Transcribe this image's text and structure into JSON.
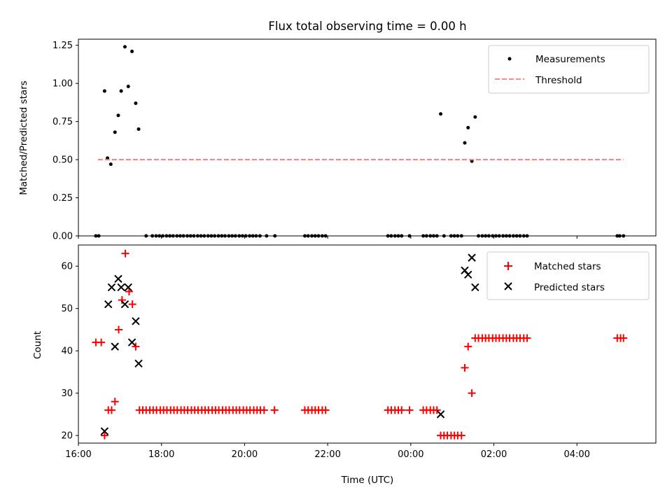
{
  "chart_data": [
    {
      "type": "scatter",
      "title": "Flux total observing time = 0.00 h",
      "xlabel": "",
      "ylabel": "Matched/Predicted stars",
      "xlim": [
        16.0,
        29.9
      ],
      "ylim": [
        0.0,
        1.29
      ],
      "x_tick_hours": [
        16,
        18,
        20,
        22,
        24,
        26,
        28
      ],
      "yticks": [
        "0.00",
        "0.25",
        "0.50",
        "0.75",
        "1.00",
        "1.25"
      ],
      "legend_position": "top-right",
      "series": [
        {
          "name": "Measurements",
          "marker": "dot",
          "color": "#000000",
          "x": [
            16.42,
            16.49,
            16.63,
            16.7,
            16.78,
            16.88,
            16.96,
            17.03,
            17.12,
            17.2,
            17.29,
            17.38,
            17.45,
            17.63,
            17.78,
            17.87,
            17.95,
            18.03,
            18.12,
            18.2,
            18.28,
            18.37,
            18.45,
            18.53,
            18.62,
            18.7,
            18.78,
            18.87,
            18.95,
            19.03,
            19.12,
            19.2,
            19.28,
            19.37,
            19.45,
            19.53,
            19.62,
            19.7,
            19.78,
            19.87,
            19.95,
            20.03,
            20.12,
            20.2,
            20.28,
            20.37,
            20.53,
            20.73,
            21.45,
            21.53,
            21.62,
            21.7,
            21.78,
            21.87,
            21.95,
            23.45,
            23.53,
            23.62,
            23.7,
            23.78,
            23.97,
            24.3,
            24.38,
            24.47,
            24.55,
            24.63,
            24.72,
            24.8,
            24.97,
            25.05,
            25.13,
            25.22,
            25.3,
            25.38,
            25.47,
            25.55,
            25.63,
            25.72,
            25.8,
            25.88,
            25.97,
            26.05,
            26.13,
            26.22,
            26.3,
            26.38,
            26.47,
            26.55,
            26.63,
            26.72,
            26.8,
            28.97,
            29.03,
            29.12
          ],
          "y": [
            0.0,
            0.0,
            0.95,
            0.51,
            0.47,
            0.68,
            0.79,
            0.95,
            1.24,
            0.98,
            1.21,
            0.87,
            0.7,
            0.0,
            0.0,
            0.0,
            0.0,
            0.0,
            0.0,
            0.0,
            0.0,
            0.0,
            0.0,
            0.0,
            0.0,
            0.0,
            0.0,
            0.0,
            0.0,
            0.0,
            0.0,
            0.0,
            0.0,
            0.0,
            0.0,
            0.0,
            0.0,
            0.0,
            0.0,
            0.0,
            0.0,
            0.0,
            0.0,
            0.0,
            0.0,
            0.0,
            0.0,
            0.0,
            0.0,
            0.0,
            0.0,
            0.0,
            0.0,
            0.0,
            0.0,
            0.0,
            0.0,
            0.0,
            0.0,
            0.0,
            0.0,
            0.0,
            0.0,
            0.0,
            0.0,
            0.0,
            0.8,
            0.0,
            0.0,
            0.0,
            0.0,
            0.0,
            0.61,
            0.71,
            0.49,
            0.78,
            0.0,
            0.0,
            0.0,
            0.0,
            0.0,
            0.0,
            0.0,
            0.0,
            0.0,
            0.0,
            0.0,
            0.0,
            0.0,
            0.0,
            0.0,
            0.0,
            0.0,
            0.0
          ]
        },
        {
          "name": "Threshold",
          "line_style": "dashed",
          "color": "#ff7a7a",
          "x": [
            16.47,
            29.12
          ],
          "y": [
            0.5,
            0.5
          ]
        }
      ]
    },
    {
      "type": "scatter",
      "title": "",
      "xlabel": "Time (UTC)",
      "ylabel": "Count",
      "xlim": [
        16.0,
        29.9
      ],
      "ylim": [
        18.2,
        65.0
      ],
      "xticks": [
        "16:00",
        "18:00",
        "20:00",
        "22:00",
        "00:00",
        "02:00",
        "04:00"
      ],
      "x_tick_hours": [
        16,
        18,
        20,
        22,
        24,
        26,
        28
      ],
      "yticks": [
        "20",
        "30",
        "40",
        "50",
        "60"
      ],
      "legend_position": "top-right",
      "series": [
        {
          "name": "Matched stars",
          "marker": "plus",
          "color": "#ff0000",
          "x": [
            16.42,
            16.55,
            16.63,
            16.72,
            16.8,
            16.88,
            16.97,
            17.05,
            17.13,
            17.22,
            17.3,
            17.38,
            17.47,
            17.55,
            17.63,
            17.72,
            17.8,
            17.88,
            17.97,
            18.05,
            18.13,
            18.22,
            18.3,
            18.38,
            18.47,
            18.55,
            18.63,
            18.72,
            18.8,
            18.88,
            18.97,
            19.05,
            19.13,
            19.22,
            19.3,
            19.38,
            19.47,
            19.55,
            19.63,
            19.72,
            19.8,
            19.88,
            19.97,
            20.05,
            20.13,
            20.22,
            20.3,
            20.38,
            20.47,
            20.72,
            21.45,
            21.53,
            21.62,
            21.7,
            21.78,
            21.87,
            21.95,
            23.45,
            23.53,
            23.62,
            23.7,
            23.78,
            23.97,
            24.3,
            24.38,
            24.47,
            24.55,
            24.63,
            24.72,
            24.8,
            24.88,
            24.97,
            25.05,
            25.13,
            25.22,
            25.3,
            25.38,
            25.47,
            25.55,
            25.63,
            25.72,
            25.8,
            25.88,
            25.97,
            26.05,
            26.13,
            26.22,
            26.3,
            26.38,
            26.47,
            26.55,
            26.63,
            26.72,
            26.8,
            28.97,
            29.05,
            29.12
          ],
          "y": [
            42,
            42,
            20,
            26,
            26,
            28,
            45,
            52,
            63,
            54,
            51,
            41,
            26,
            26,
            26,
            26,
            26,
            26,
            26,
            26,
            26,
            26,
            26,
            26,
            26,
            26,
            26,
            26,
            26,
            26,
            26,
            26,
            26,
            26,
            26,
            26,
            26,
            26,
            26,
            26,
            26,
            26,
            26,
            26,
            26,
            26,
            26,
            26,
            26,
            26,
            26,
            26,
            26,
            26,
            26,
            26,
            26,
            26,
            26,
            26,
            26,
            26,
            26,
            26,
            26,
            26,
            26,
            26,
            20,
            20,
            20,
            20,
            20,
            20,
            20,
            36,
            41,
            30,
            43,
            43,
            43,
            43,
            43,
            43,
            43,
            43,
            43,
            43,
            43,
            43,
            43,
            43,
            43,
            43,
            43,
            43,
            43
          ]
        },
        {
          "name": "Predicted stars",
          "marker": "x",
          "color": "#000000",
          "x": [
            16.63,
            16.72,
            16.8,
            16.88,
            16.96,
            17.03,
            17.12,
            17.2,
            17.29,
            17.38,
            17.45,
            24.72,
            25.3,
            25.38,
            25.47,
            25.55
          ],
          "y": [
            21,
            51,
            55,
            41,
            57,
            55,
            51,
            55,
            42,
            47,
            37,
            25,
            59,
            58,
            62,
            55
          ]
        }
      ]
    }
  ]
}
